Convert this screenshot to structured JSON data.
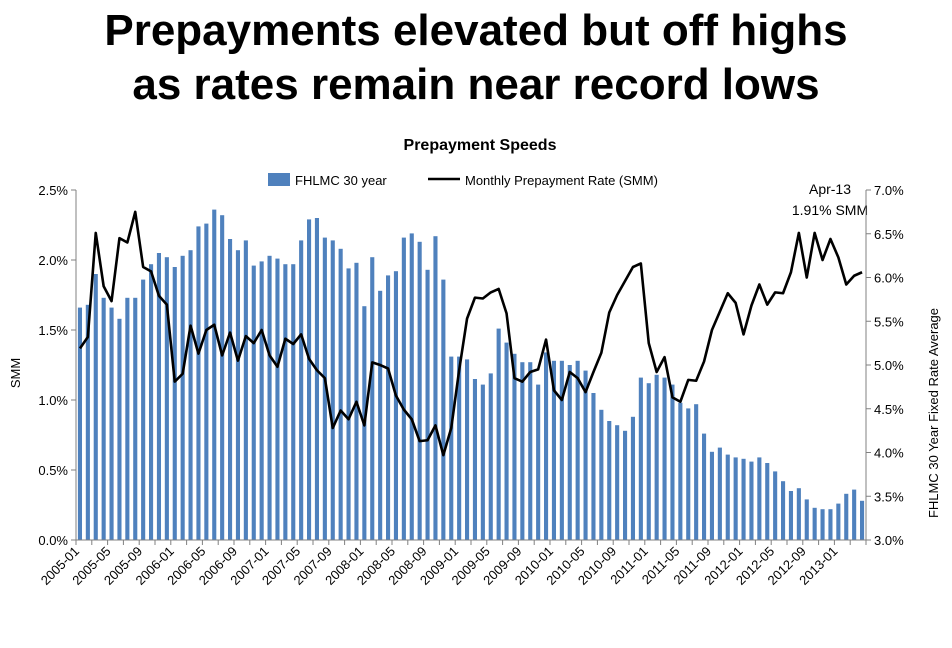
{
  "headline": {
    "line1": "Prepayments elevated but off highs",
    "line2": "as rates remain near record lows"
  },
  "colors": {
    "bars": "#4F81BD",
    "line": "#000000",
    "axis": "#808080"
  },
  "chart_data": {
    "type": "bar",
    "title": "Prepayment Speeds",
    "ylabel": "SMM",
    "y2label": "FHLMC 30 Year Fixed Rate Average",
    "ylim": [
      0,
      0.025
    ],
    "y2lim": [
      0.03,
      0.07
    ],
    "yticks": [
      "0.0%",
      "0.5%",
      "1.0%",
      "1.5%",
      "2.0%",
      "2.5%"
    ],
    "y2ticks": [
      "3.0%",
      "3.5%",
      "4.0%",
      "4.5%",
      "5.0%",
      "5.5%",
      "6.0%",
      "6.5%",
      "7.0%"
    ],
    "xtick_labels": [
      "2005-01",
      "2005-05",
      "2005-09",
      "2006-01",
      "2006-05",
      "2006-09",
      "2007-01",
      "2007-05",
      "2007-09",
      "2008-01",
      "2008-05",
      "2008-09",
      "2009-01",
      "2009-05",
      "2009-09",
      "2010-01",
      "2010-05",
      "2010-09",
      "2011-01",
      "2011-05",
      "2011-09",
      "2012-01",
      "2012-05",
      "2012-09",
      "2013-01"
    ],
    "legend": [
      "FHLMC 30 year",
      "Monthly Prepayment Rate (SMM)"
    ],
    "legend_position": "top",
    "annotation": {
      "line1": "Apr-13",
      "line2": "1.91% SMM"
    },
    "grid": false,
    "series": [
      {
        "name": "FHLMC 30 year",
        "type": "bar",
        "axis": "left",
        "values": [
          0.0166,
          0.0168,
          0.019,
          0.0173,
          0.0166,
          0.0158,
          0.0173,
          0.0173,
          0.0186,
          0.0197,
          0.0205,
          0.0202,
          0.0195,
          0.0203,
          0.0207,
          0.0224,
          0.0226,
          0.0236,
          0.0232,
          0.0215,
          0.0207,
          0.0214,
          0.0196,
          0.0199,
          0.0203,
          0.0201,
          0.0197,
          0.0197,
          0.0214,
          0.0229,
          0.023,
          0.0216,
          0.0214,
          0.0208,
          0.0194,
          0.0198,
          0.0167,
          0.0202,
          0.0178,
          0.0189,
          0.0192,
          0.0216,
          0.0219,
          0.0213,
          0.0193,
          0.0217,
          0.0186,
          0.0131,
          0.0131,
          0.0129,
          0.0115,
          0.0111,
          0.0119,
          0.0151,
          0.0141,
          0.0133,
          0.0127,
          0.0127,
          0.0111,
          0.0134,
          0.0128,
          0.0128,
          0.0125,
          0.0128,
          0.0121,
          0.0105,
          0.0093,
          0.0085,
          0.0082,
          0.0078,
          0.0088,
          0.0116,
          0.0112,
          0.0118,
          0.0116,
          0.0111,
          0.0098,
          0.0094,
          0.0097,
          0.0076,
          0.0063,
          0.0066,
          0.0061,
          0.0059,
          0.0058,
          0.0056,
          0.0059,
          0.0055,
          0.0049,
          0.0042,
          0.0035,
          0.0037,
          0.0029,
          0.0023,
          0.0022,
          0.0022,
          0.0026,
          0.0033,
          0.0036,
          0.0028
        ]
      },
      {
        "name": "Monthly Prepayment Rate (SMM)",
        "type": "line",
        "axis": "right",
        "values": [
          0.0519,
          0.0532,
          0.0651,
          0.059,
          0.0573,
          0.0645,
          0.064,
          0.0675,
          0.0612,
          0.0607,
          0.0579,
          0.0569,
          0.0481,
          0.049,
          0.0545,
          0.0513,
          0.054,
          0.0546,
          0.0511,
          0.0537,
          0.0505,
          0.0533,
          0.0525,
          0.054,
          0.0511,
          0.0498,
          0.053,
          0.0524,
          0.0535,
          0.0507,
          0.0494,
          0.0485,
          0.0428,
          0.0448,
          0.0438,
          0.0458,
          0.0431,
          0.0503,
          0.05,
          0.0496,
          0.0465,
          0.0449,
          0.0438,
          0.0413,
          0.0414,
          0.0431,
          0.0397,
          0.0428,
          0.0494,
          0.0553,
          0.0577,
          0.0576,
          0.0583,
          0.0587,
          0.0559,
          0.0485,
          0.0481,
          0.0492,
          0.0495,
          0.0529,
          0.0471,
          0.046,
          0.0492,
          0.0485,
          0.0469,
          0.0492,
          0.0514,
          0.056,
          0.058,
          0.0596,
          0.0612,
          0.0616,
          0.0525,
          0.0492,
          0.0509,
          0.0463,
          0.0458,
          0.0483,
          0.0482,
          0.0504,
          0.054,
          0.0561,
          0.0582,
          0.0571,
          0.0535,
          0.0568,
          0.0592,
          0.0569,
          0.0583,
          0.0582,
          0.0606,
          0.0651,
          0.06,
          0.0651,
          0.062,
          0.0644,
          0.0623,
          0.0592,
          0.0602,
          0.0606
        ]
      }
    ]
  }
}
